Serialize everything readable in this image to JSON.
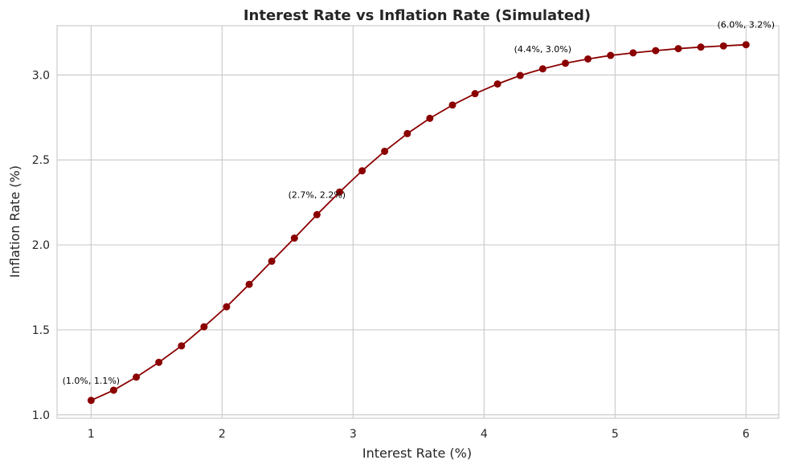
{
  "chart_data": {
    "type": "line",
    "title": "Interest Rate vs Inflation Rate (Simulated)",
    "xlabel": "Interest Rate (%)",
    "ylabel": "Inflation Rate (%)",
    "xlim": [
      0.74,
      6.25
    ],
    "ylim": [
      0.98,
      3.29
    ],
    "xticks": [
      1,
      2,
      3,
      4,
      5,
      6
    ],
    "yticks": [
      1.0,
      1.5,
      2.0,
      2.5,
      3.0
    ],
    "ytick_labels": [
      "1.0",
      "1.5",
      "2.0",
      "2.5",
      "3.0"
    ],
    "grid": true,
    "color": "#8b0000",
    "marker": "circle",
    "series": [
      {
        "x": [
          1.0,
          1.172,
          1.345,
          1.517,
          1.69,
          1.862,
          2.034,
          2.207,
          2.379,
          2.552,
          2.724,
          2.897,
          3.069,
          3.241,
          3.414,
          3.586,
          3.759,
          3.931,
          4.103,
          4.276,
          4.448,
          4.621,
          4.793,
          4.966,
          5.138,
          5.31,
          5.483,
          5.655,
          5.828,
          6.0
        ],
        "y": [
          1.085,
          1.145,
          1.222,
          1.309,
          1.406,
          1.518,
          1.636,
          1.768,
          1.904,
          2.04,
          2.178,
          2.311,
          2.436,
          2.551,
          2.655,
          2.745,
          2.823,
          2.89,
          2.947,
          2.997,
          3.036,
          3.069,
          3.094,
          3.115,
          3.13,
          3.143,
          3.155,
          3.164,
          3.171,
          3.178
        ]
      }
    ],
    "annotations": [
      {
        "text": "(1.0%, 1.1%)",
        "x": 1.0,
        "y": 1.085
      },
      {
        "text": "(2.7%, 2.2%)",
        "x": 2.724,
        "y": 2.178
      },
      {
        "text": "(4.4%, 3.0%)",
        "x": 4.448,
        "y": 3.036
      },
      {
        "text": "(6.0%, 3.2%)",
        "x": 6.0,
        "y": 3.178
      }
    ]
  }
}
